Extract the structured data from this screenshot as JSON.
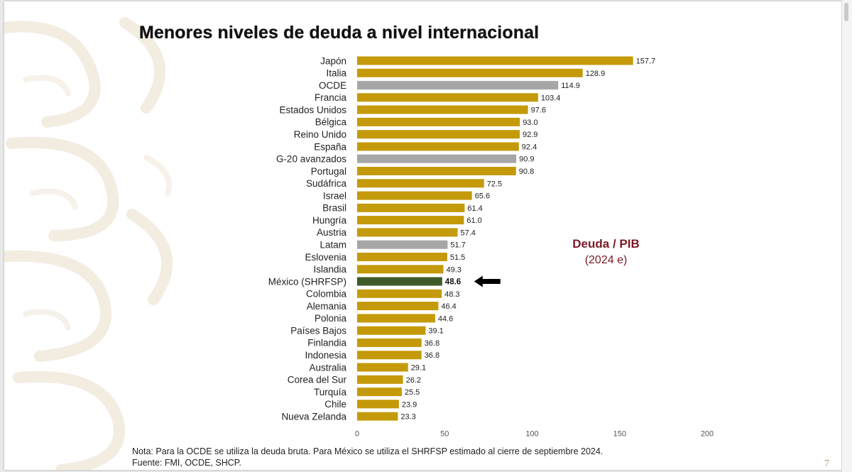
{
  "slide": {
    "title": "Menores niveles de deuda a nivel internacional",
    "legend_line1": "Deuda / PIB",
    "legend_line2": "(2024 e)",
    "footnote_line1": "Nota: Para la OCDE se utiliza la deuda bruta. Para México se utiliza el SHRFSP estimado al cierre de septiembre 2024.",
    "footnote_line2": "Fuente: FMI, OCDE, SHCP.",
    "page_number": "7"
  },
  "colors": {
    "country": "#c49a0a",
    "aggregate": "#a6a6a6",
    "mexico": "#3f5a2a",
    "legend_text": "#7a1a24",
    "arrow": "#000000"
  },
  "chart_data": {
    "type": "bar",
    "orientation": "horizontal",
    "title": "Menores niveles de deuda a nivel internacional",
    "xlim": [
      0,
      200
    ],
    "xticks": [
      0,
      50,
      100,
      150,
      200
    ],
    "grid": false,
    "highlight": "México (SHRFSP)",
    "categories": [
      "Japón",
      "Italia",
      "OCDE",
      "Francia",
      "Estados Unidos",
      "Bélgica",
      "Reino Unido",
      "España",
      "G-20 avanzados",
      "Portugal",
      "Sudáfrica",
      "Israel",
      "Brasil",
      "Hungría",
      "Austria",
      "Latam",
      "Eslovenia",
      "Islandia",
      "México (SHRFSP)",
      "Colombia",
      "Alemania",
      "Polonia",
      "Países Bajos",
      "Finlandia",
      "Indonesia",
      "Australia",
      "Corea del Sur",
      "Turquía",
      "Chile",
      "Nueva Zelanda"
    ],
    "values": [
      157.7,
      128.9,
      114.9,
      103.4,
      97.6,
      93.0,
      92.9,
      92.4,
      90.9,
      90.8,
      72.5,
      65.6,
      61.4,
      61.0,
      57.4,
      51.7,
      51.5,
      49.3,
      48.6,
      48.3,
      46.4,
      44.6,
      39.1,
      36.8,
      36.8,
      29.1,
      26.2,
      25.5,
      23.9,
      23.3
    ],
    "value_labels": [
      "157.7",
      "128.9",
      "114.9",
      "103.4",
      "97.6",
      "93.0",
      "92.9",
      "92.4",
      "90.9",
      "90.8",
      "72.5",
      "65.6",
      "61.4",
      "61.0",
      "57.4",
      "51.7",
      "51.5",
      "49.3",
      "48.6",
      "48.3",
      "46.4",
      "44.6",
      "39.1",
      "36.8",
      "36.8",
      "29.1",
      "26.2",
      "25.5",
      "23.9",
      "23.3"
    ],
    "groups": [
      "country",
      "country",
      "aggregate",
      "country",
      "country",
      "country",
      "country",
      "country",
      "aggregate",
      "country",
      "country",
      "country",
      "country",
      "country",
      "country",
      "aggregate",
      "country",
      "country",
      "mexico",
      "country",
      "country",
      "country",
      "country",
      "country",
      "country",
      "country",
      "country",
      "country",
      "country",
      "country"
    ]
  }
}
